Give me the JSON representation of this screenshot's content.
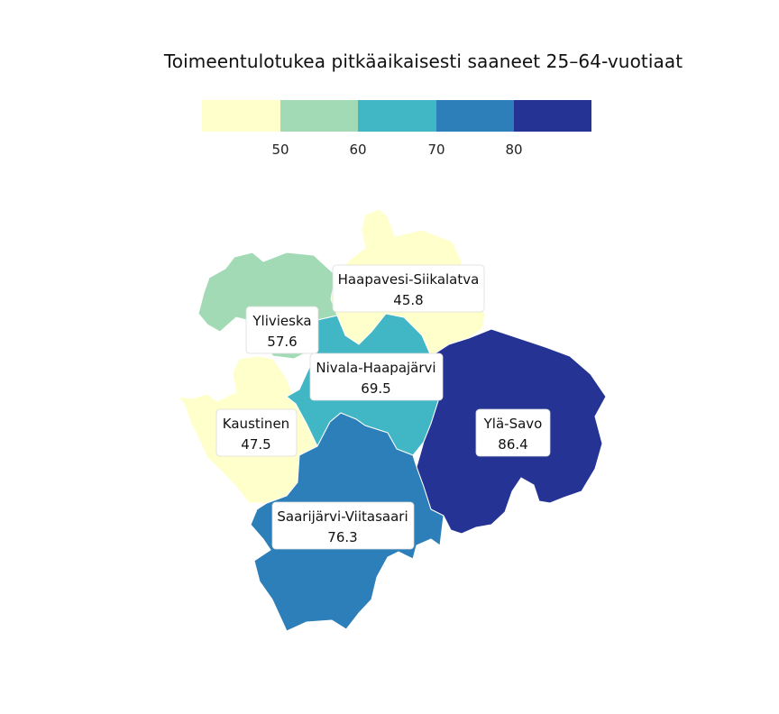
{
  "title": "Toimeentulotukea pitkäaikaisesti saaneet 25–64-vuotiaat",
  "legend": {
    "colors": [
      "#ffffcc",
      "#a1dab4",
      "#41b6c4",
      "#2c7fb8",
      "#253494"
    ],
    "thresholds": [
      "50",
      "60",
      "70",
      "80"
    ]
  },
  "regions": [
    {
      "name": "Haapavesi-Siikalatva",
      "value": "45.8",
      "color": "#ffffcc"
    },
    {
      "name": "Ylivieska",
      "value": "57.6",
      "color": "#a1dab4"
    },
    {
      "name": "Nivala-Haapajärvi",
      "value": "69.5",
      "color": "#41b6c4"
    },
    {
      "name": "Kaustinen",
      "value": "47.5",
      "color": "#ffffcc"
    },
    {
      "name": "Ylä-Savo",
      "value": "86.4",
      "color": "#253494"
    },
    {
      "name": "Saarijärvi-Viitasaari",
      "value": "76.3",
      "color": "#2c7fb8"
    }
  ]
}
